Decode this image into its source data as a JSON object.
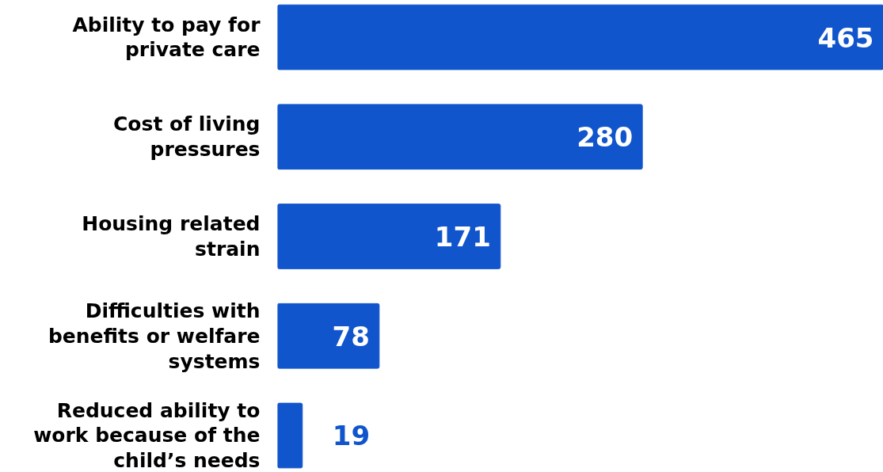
{
  "chart_data": {
    "type": "bar",
    "orientation": "horizontal",
    "categories": [
      "Ability to pay for private care",
      "Cost of living pressures",
      "Housing related strain",
      "Difficulties with benefits or welfare systems",
      "Reduced ability to work because of the child’s needs"
    ],
    "values": [
      465,
      280,
      171,
      78,
      19
    ],
    "color": "#1155cc",
    "data_labels": true,
    "tick_labels": "y"
  }
}
